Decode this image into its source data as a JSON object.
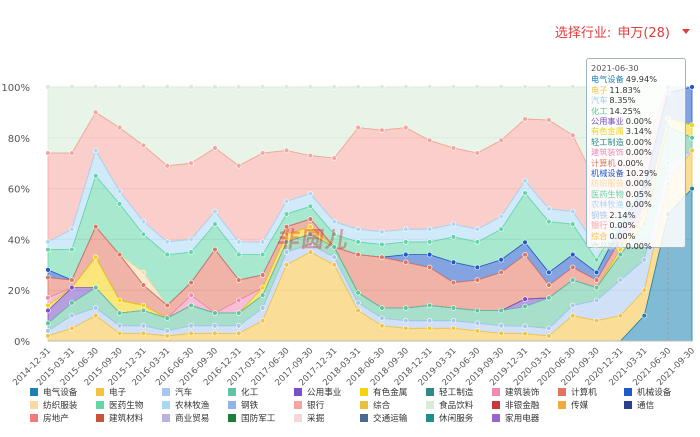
{
  "selector": {
    "label": "选择行业:",
    "value": "申万(28)"
  },
  "tooltip": {
    "date": "2021-06-30",
    "rows": [
      {
        "name": "电气设备",
        "value": "49.94%",
        "color": "#1a82b3"
      },
      {
        "name": "电子",
        "value": "11.83%",
        "color": "#f5c342"
      },
      {
        "name": "汽车",
        "value": "8.35%",
        "color": "#a9c6f0"
      },
      {
        "name": "化工",
        "value": "14.25%",
        "color": "#5fc59e"
      },
      {
        "name": "公用事业",
        "value": "0.00%",
        "color": "#7a4fc9"
      },
      {
        "name": "有色金属",
        "value": "3.14%",
        "color": "#f6d20f"
      },
      {
        "name": "轻工制造",
        "value": "0.00%",
        "color": "#2f8a84"
      },
      {
        "name": "建筑装饰",
        "value": "0.00%",
        "color": "#f08ab5"
      },
      {
        "name": "计算机",
        "value": "0.00%",
        "color": "#e1745f"
      },
      {
        "name": "机械设备",
        "value": "10.29%",
        "color": "#1f58c8"
      },
      {
        "name": "纺织服装",
        "value": "0.00%",
        "color": "#f6d9a4"
      },
      {
        "name": "医药生物",
        "value": "0.05%",
        "color": "#61d6a6"
      },
      {
        "name": "农林牧渔",
        "value": "0.00%",
        "color": "#a9d8f6"
      },
      {
        "name": "钢铁",
        "value": "2.14%",
        "color": "#a9c6f0"
      },
      {
        "name": "银行",
        "value": "0.00%",
        "color": "#f5a5a0"
      },
      {
        "name": "综合",
        "value": "0.00%",
        "color": "#f5c342"
      },
      {
        "name": "食品饮料",
        "value": "0.00%",
        "color": "#d7ebd6"
      }
    ]
  },
  "watermark": "非圆儿",
  "chart_data": {
    "type": "area",
    "stacked": true,
    "percent": true,
    "ylim": [
      0,
      100
    ],
    "yticks": [
      "0%",
      "20%",
      "40%",
      "60%",
      "80%",
      "100%"
    ],
    "categories": [
      "2014-12-31",
      "2015-03-31",
      "2015-06-30",
      "2015-09-30",
      "2015-12-31",
      "2016-03-31",
      "2016-06-30",
      "2016-09-30",
      "2016-12-31",
      "2017-03-31",
      "2017-06-30",
      "2017-09-30",
      "2017-12-31",
      "2018-03-31",
      "2018-06-30",
      "2018-09-30",
      "2018-12-31",
      "2019-03-31",
      "2019-06-30",
      "2019-09-30",
      "2019-12-31",
      "2020-03-31",
      "2020-06-30",
      "2020-09-30",
      "2020-12-31",
      "2021-03-31",
      "2021-06-30",
      "2021-09-30"
    ],
    "series": [
      {
        "name": "电气设备",
        "color": "#1a82b3",
        "values": [
          0,
          0,
          0,
          0,
          0,
          0,
          0,
          0,
          0,
          0,
          0,
          0,
          0,
          0,
          0,
          0,
          0,
          0,
          0,
          0,
          0,
          0,
          0,
          0,
          0,
          10,
          49.94,
          60
        ]
      },
      {
        "name": "电子",
        "color": "#f5c342",
        "values": [
          2,
          5,
          10,
          3,
          3,
          2,
          3,
          3,
          3,
          8,
          30,
          35,
          30,
          12,
          6,
          5,
          5,
          5,
          4,
          3,
          3,
          2,
          10,
          8,
          10,
          10,
          11.83,
          15
        ]
      },
      {
        "name": "汽车",
        "color": "#a9c6f0",
        "values": [
          2,
          5,
          3,
          3,
          3,
          2,
          3,
          3,
          3,
          5,
          5,
          3,
          3,
          3,
          3,
          3,
          3,
          3,
          3,
          3,
          3,
          3,
          4,
          8,
          14,
          12,
          8.35,
          0
        ]
      },
      {
        "name": "化工",
        "color": "#5fc59e",
        "values": [
          3,
          5,
          8,
          5,
          6,
          5,
          8,
          5,
          5,
          5,
          4,
          4,
          4,
          4,
          4,
          5,
          6,
          5,
          5,
          6,
          8,
          12,
          10,
          5,
          10,
          14,
          14.25,
          5
        ]
      },
      {
        "name": "公用事业",
        "color": "#7a4fc9",
        "values": [
          5,
          6,
          0,
          0,
          0,
          0,
          0,
          0,
          0,
          0,
          0,
          0,
          0,
          0,
          0,
          0,
          0,
          0,
          0,
          0,
          3,
          0,
          0,
          0,
          0,
          0,
          0,
          0
        ]
      },
      {
        "name": "有色金属",
        "color": "#f6d20f",
        "values": [
          2,
          0,
          12,
          5,
          2,
          0,
          0,
          0,
          0,
          3,
          3,
          3,
          0,
          0,
          0,
          0,
          0,
          0,
          0,
          0,
          0,
          0,
          0,
          0,
          2,
          4,
          3.14,
          5
        ]
      },
      {
        "name": "轻工制造",
        "color": "#2f8a84",
        "values": [
          0,
          0,
          0,
          0,
          0,
          0,
          0,
          0,
          0,
          0,
          0,
          0,
          0,
          0,
          0,
          0,
          0,
          0,
          0,
          0,
          0,
          0,
          0,
          0,
          0,
          0,
          0,
          0
        ]
      },
      {
        "name": "建筑装饰",
        "color": "#f08ab5",
        "values": [
          3,
          0,
          0,
          0,
          0,
          0,
          4,
          0,
          5,
          0,
          0,
          0,
          0,
          0,
          0,
          0,
          0,
          0,
          0,
          0,
          0,
          0,
          0,
          0,
          0,
          0,
          0,
          0
        ]
      },
      {
        "name": "计算机",
        "color": "#e1745f",
        "values": [
          8,
          3,
          12,
          18,
          8,
          5,
          5,
          25,
          8,
          5,
          3,
          3,
          0,
          15,
          20,
          18,
          15,
          10,
          12,
          15,
          18,
          5,
          5,
          3,
          4,
          3,
          0,
          0
        ]
      },
      {
        "name": "机械设备",
        "color": "#1f58c8",
        "values": [
          3,
          0,
          0,
          0,
          0,
          0,
          0,
          0,
          0,
          0,
          0,
          0,
          0,
          0,
          0,
          3,
          5,
          8,
          5,
          5,
          5,
          5,
          5,
          3,
          5,
          8,
          10.29,
          15
        ]
      },
      {
        "name": "纺织服装",
        "color": "#f6d9a4",
        "values": [
          0,
          0,
          0,
          0,
          5,
          0,
          0,
          0,
          0,
          0,
          0,
          0,
          0,
          0,
          0,
          0,
          0,
          0,
          0,
          0,
          0,
          0,
          0,
          0,
          0,
          0,
          0,
          0
        ]
      },
      {
        "name": "医药生物",
        "color": "#61d6a6",
        "values": [
          8,
          12,
          20,
          20,
          15,
          20,
          12,
          10,
          10,
          8,
          5,
          5,
          5,
          5,
          5,
          5,
          5,
          10,
          10,
          12,
          20,
          20,
          12,
          5,
          3,
          0,
          0.05,
          0
        ]
      },
      {
        "name": "农林牧渔",
        "color": "#a9d8f6",
        "values": [
          3,
          8,
          10,
          5,
          5,
          5,
          5,
          5,
          5,
          5,
          5,
          5,
          5,
          5,
          5,
          5,
          5,
          5,
          5,
          5,
          5,
          5,
          5,
          5,
          3,
          0,
          0,
          0
        ]
      },
      {
        "name": "钢铁",
        "color": "#8fb6e8",
        "values": [
          0,
          0,
          0,
          0,
          0,
          0,
          0,
          0,
          0,
          0,
          0,
          0,
          0,
          0,
          0,
          0,
          0,
          0,
          0,
          0,
          0,
          0,
          0,
          0,
          0,
          0,
          2.14,
          0
        ]
      },
      {
        "name": "银行",
        "color": "#f5a5a0",
        "values": [
          35,
          30,
          15,
          25,
          30,
          30,
          30,
          25,
          30,
          35,
          20,
          15,
          25,
          40,
          40,
          40,
          35,
          30,
          30,
          30,
          25,
          35,
          30,
          25,
          20,
          15,
          0,
          0
        ]
      },
      {
        "name": "综合",
        "color": "#e8c23c",
        "values": [
          0,
          0,
          0,
          0,
          0,
          0,
          0,
          0,
          0,
          0,
          0,
          0,
          0,
          0,
          0,
          0,
          0,
          0,
          0,
          0,
          0,
          0,
          0,
          0,
          0,
          0,
          0,
          0
        ]
      },
      {
        "name": "食品饮料",
        "color": "#d7ebd6",
        "values": [
          26,
          26,
          10,
          16,
          23,
          31,
          30,
          24,
          31,
          26,
          25,
          27,
          28,
          16,
          17,
          16,
          21,
          24,
          26,
          21,
          13,
          13,
          19,
          38,
          29,
          24,
          0,
          0
        ]
      }
    ]
  },
  "legend": [
    {
      "name": "电气设备",
      "color": "#1a82b3"
    },
    {
      "name": "电子",
      "color": "#f5c342"
    },
    {
      "name": "汽车",
      "color": "#a9c6f0"
    },
    {
      "name": "化工",
      "color": "#5fc59e"
    },
    {
      "name": "公用事业",
      "color": "#7a4fc9"
    },
    {
      "name": "有色金属",
      "color": "#f6d20f"
    },
    {
      "name": "轻工制造",
      "color": "#2f8a84"
    },
    {
      "name": "建筑装饰",
      "color": "#f08ab5"
    },
    {
      "name": "计算机",
      "color": "#e1745f"
    },
    {
      "name": "机械设备",
      "color": "#1f58c8"
    },
    {
      "name": "纺织服装",
      "color": "#f6d9a4"
    },
    {
      "name": "医药生物",
      "color": "#61d6a6"
    },
    {
      "name": "农林牧渔",
      "color": "#a9d8f6"
    },
    {
      "name": "钢铁",
      "color": "#8fb6e8"
    },
    {
      "name": "银行",
      "color": "#f5a5a0"
    },
    {
      "name": "综合",
      "color": "#e8c23c"
    },
    {
      "name": "食品饮料",
      "color": "#d7ebd6"
    },
    {
      "name": "非银金融",
      "color": "#c8383a"
    },
    {
      "name": "传媒",
      "color": "#f3a93c"
    },
    {
      "name": "通信",
      "color": "#2d3f8f"
    },
    {
      "name": "房地产",
      "color": "#f07a78"
    },
    {
      "name": "建筑材料",
      "color": "#c7533b"
    },
    {
      "name": "商业贸易",
      "color": "#b8b2dd"
    },
    {
      "name": "国防军工",
      "color": "#1f7d3c"
    },
    {
      "name": "采掘",
      "color": "#f7d7d4"
    },
    {
      "name": "交通运输",
      "color": "#4a6a91"
    },
    {
      "name": "休闲服务",
      "color": "#1f8f8a"
    },
    {
      "name": "家用电器",
      "color": "#9a63d3"
    }
  ]
}
